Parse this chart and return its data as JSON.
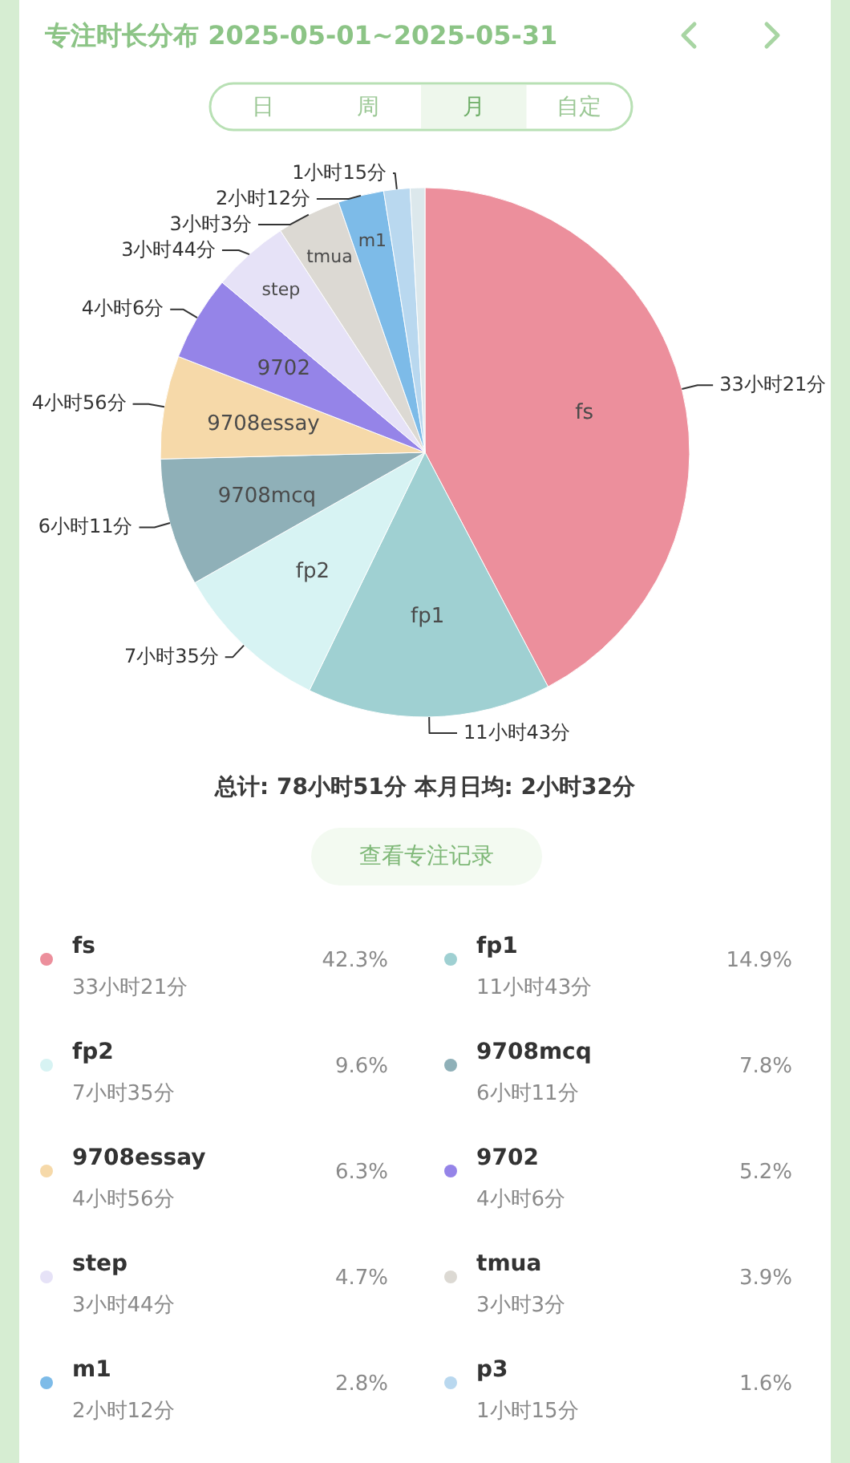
{
  "chart_data": {
    "type": "pie",
    "title": "专注时长分布 2025-05-01~2025-05-31",
    "subtitle": "总计: 78小时51分  本月日均: 2小时32分",
    "categories": [
      "fs",
      "fp1",
      "fp2",
      "9708mcq",
      "9708essay",
      "9702",
      "step",
      "tmua",
      "m1",
      "p3",
      null
    ],
    "values": [
      42.3,
      14.9,
      9.6,
      7.8,
      6.3,
      5.2,
      4.7,
      3.9,
      2.8,
      1.6,
      0.9
    ],
    "value_labels": [
      "42.3%",
      "14.9%",
      "9.6%",
      "7.8%",
      "6.3%",
      "5.2%",
      "4.7%",
      "3.9%",
      "2.8%",
      "1.6%",
      null
    ],
    "colors": [
      "#ec8f9c",
      "#9fd0d2",
      "#d7f3f3",
      "#8fb0b8",
      "#f6d9a9",
      "#9584e8",
      "#e6e2f7",
      "#dcd9d3",
      "#7dbbe8",
      "#b9d8ef",
      "#dce8ec"
    ],
    "legend": "bottom",
    "annotations": [
      "日",
      "周",
      "月",
      "自定",
      "查看专注记录",
      "33小时21分",
      "11小时43分",
      "7小时35分",
      "6小时11分",
      "4小时56分",
      "4小时6分",
      "3小时44分",
      "3小时3分",
      "2小时12分",
      "1小时15分"
    ]
  }
}
